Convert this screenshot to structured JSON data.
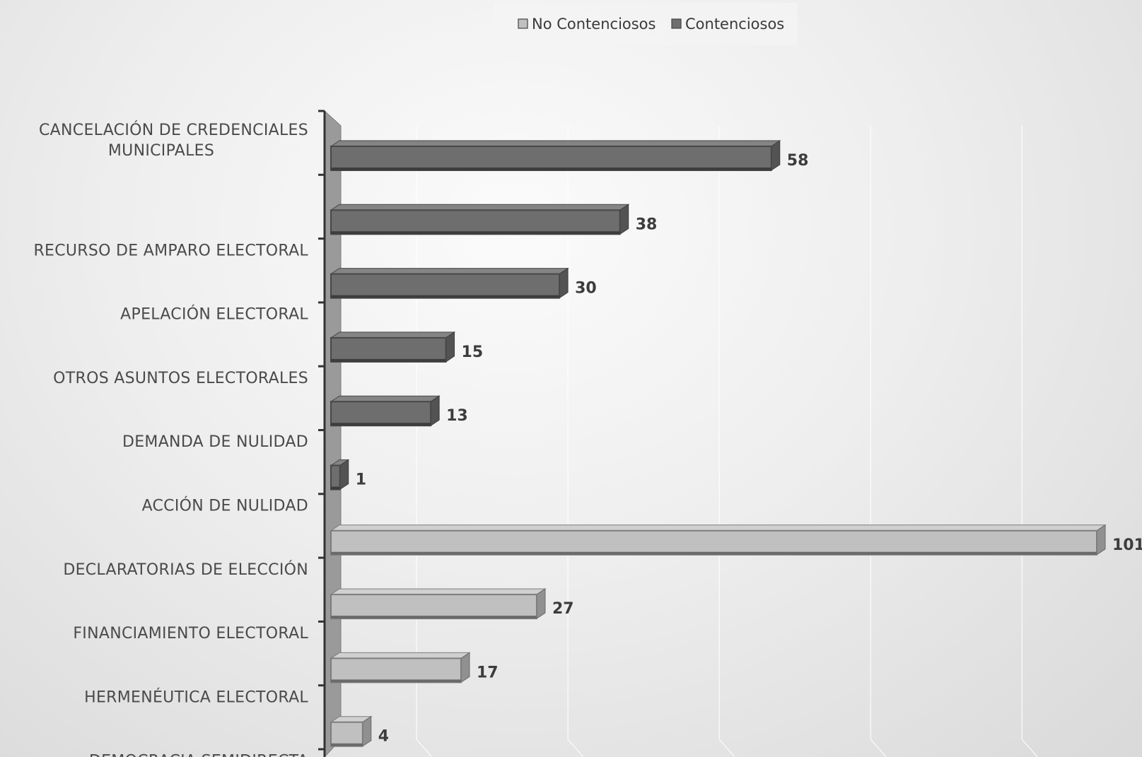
{
  "chart_data": {
    "type": "bar",
    "orientation": "horizontal",
    "style": "3d-clustered",
    "categories": [
      "CANCELACIÓN DE CREDENCIALES MUNICIPALES",
      "RECURSO DE AMPARO ELECTORAL",
      "APELACIÓN ELECTORAL",
      "OTROS ASUNTOS ELECTORALES",
      "DEMANDA DE NULIDAD",
      "ACCIÓN DE NULIDAD",
      "DECLARATORIAS DE ELECCIÓN",
      "FINANCIAMIENTO ELECTORAL",
      "HERMENÉUTICA ELECTORAL",
      "DEMOCRACIA SEMIDIRECTA"
    ],
    "category_lines": [
      [
        "CANCELACIÓN DE CREDENCIALES",
        "MUNICIPALES"
      ],
      [
        "RECURSO DE AMPARO ELECTORAL"
      ],
      [
        "APELACIÓN ELECTORAL"
      ],
      [
        "OTROS ASUNTOS ELECTORALES"
      ],
      [
        "DEMANDA DE NULIDAD"
      ],
      [
        "ACCIÓN DE NULIDAD"
      ],
      [
        "DECLARATORIAS DE ELECCIÓN"
      ],
      [
        "FINANCIAMIENTO ELECTORAL"
      ],
      [
        "HERMENÉUTICA ELECTORAL"
      ],
      [
        "DEMOCRACIA SEMIDIRECTA"
      ]
    ],
    "series": [
      {
        "name": "No Contenciosos",
        "color": "#c0c0c0",
        "values": [
          null,
          null,
          null,
          null,
          null,
          null,
          101,
          27,
          17,
          4
        ]
      },
      {
        "name": "Contenciosos",
        "color": "#6e6e6e",
        "values": [
          58,
          38,
          30,
          15,
          13,
          1,
          null,
          null,
          null,
          null
        ]
      }
    ],
    "xlim": [
      0,
      100
    ],
    "grid": true,
    "legend_position": "top",
    "data_labels": true
  }
}
